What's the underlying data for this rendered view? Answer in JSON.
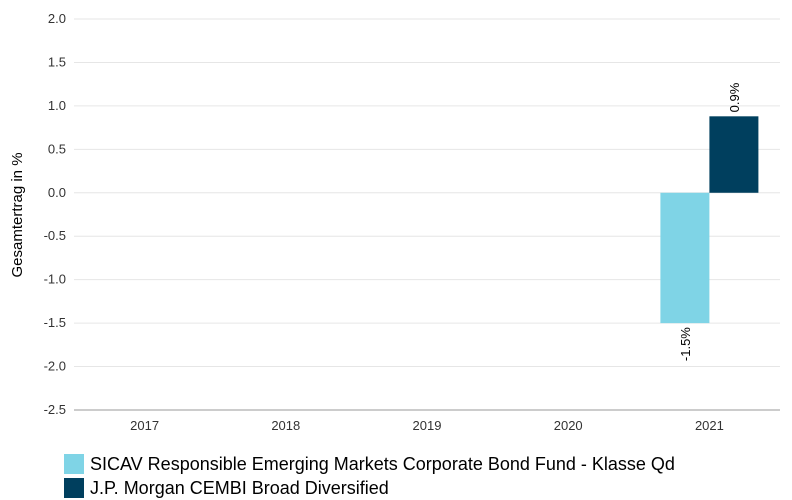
{
  "chart_data": {
    "type": "bar",
    "ylabel": "Gesamtertrag in %",
    "xlabel": "",
    "categories": [
      "2017",
      "2018",
      "2019",
      "2020",
      "2021"
    ],
    "ylim": [
      -2.5,
      2.0
    ],
    "yticks": [
      "2.0",
      "1.5",
      "1.0",
      "0.5",
      "0.0",
      "-0.5",
      "-1.0",
      "-1.5",
      "-2.0",
      "-2.5"
    ],
    "grid": true,
    "legend_position": "bottom-left",
    "series": [
      {
        "name": "SICAV Responsible Emerging Markets Corporate Bond Fund  - Klasse Qd",
        "color": "#7fd4e6",
        "values": [
          null,
          null,
          null,
          null,
          -1.5
        ],
        "labels": [
          "",
          "",
          "",
          "",
          "-1.5%"
        ]
      },
      {
        "name": "J.P. Morgan CEMBI Broad Diversified",
        "color": "#003f5e",
        "values": [
          null,
          null,
          null,
          null,
          0.88
        ],
        "labels": [
          "",
          "",
          "",
          "",
          "0.9%"
        ]
      }
    ]
  }
}
